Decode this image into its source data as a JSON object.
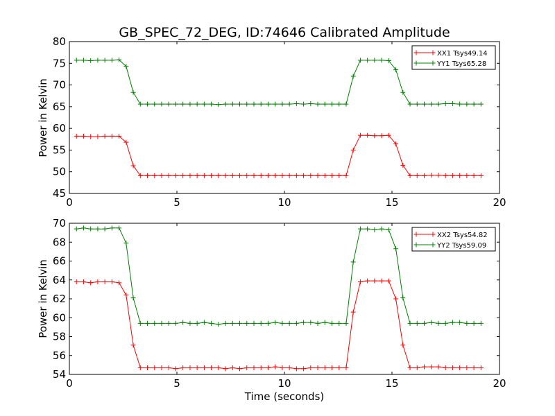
{
  "chart_data": [
    {
      "type": "line",
      "title": "GB_SPEC_72_DEG, ID:74646 Calibrated Amplitude",
      "xlabel": "",
      "ylabel": "Power in Kelvin",
      "xlim": [
        0,
        20
      ],
      "ylim": [
        45,
        80
      ],
      "xticks": [
        0,
        5,
        10,
        15,
        20
      ],
      "yticks": [
        45,
        50,
        55,
        60,
        65,
        70,
        75,
        80
      ],
      "legend_position": "top-right",
      "x": [
        0.33,
        0.66,
        0.99,
        1.32,
        1.65,
        1.98,
        2.31,
        2.64,
        2.97,
        3.3,
        3.63,
        3.96,
        4.29,
        4.62,
        4.95,
        5.28,
        5.61,
        5.94,
        6.27,
        6.6,
        6.93,
        7.26,
        7.59,
        7.92,
        8.25,
        8.58,
        8.91,
        9.24,
        9.57,
        9.9,
        10.23,
        10.56,
        10.89,
        11.22,
        11.55,
        11.88,
        12.21,
        12.54,
        12.87,
        13.2,
        13.53,
        13.86,
        14.19,
        14.52,
        14.85,
        15.18,
        15.51,
        15.84,
        16.17,
        16.5,
        16.83,
        17.16,
        17.49,
        17.82,
        18.15,
        18.48,
        18.81,
        19.14
      ],
      "series": [
        {
          "name": "XX1 Tsys49.14",
          "color": "#ff0000",
          "values": [
            58.2,
            58.2,
            58.1,
            58.1,
            58.2,
            58.2,
            58.2,
            56.8,
            51.4,
            49.1,
            49.1,
            49.1,
            49.1,
            49.1,
            49.1,
            49.1,
            49.1,
            49.1,
            49.1,
            49.1,
            49.1,
            49.1,
            49.1,
            49.1,
            49.1,
            49.1,
            49.1,
            49.1,
            49.1,
            49.1,
            49.1,
            49.1,
            49.1,
            49.1,
            49.1,
            49.1,
            49.1,
            49.1,
            49.1,
            55.0,
            58.4,
            58.4,
            58.3,
            58.3,
            58.4,
            56.4,
            51.5,
            49.1,
            49.1,
            49.1,
            49.2,
            49.2,
            49.1,
            49.1,
            49.1,
            49.1,
            49.1,
            49.1
          ]
        },
        {
          "name": "YY1 Tsys65.28",
          "color": "#008000",
          "values": [
            75.7,
            75.7,
            75.6,
            75.7,
            75.7,
            75.7,
            75.8,
            74.3,
            68.3,
            65.6,
            65.6,
            65.6,
            65.6,
            65.6,
            65.6,
            65.6,
            65.6,
            65.6,
            65.6,
            65.6,
            65.5,
            65.6,
            65.6,
            65.6,
            65.6,
            65.6,
            65.6,
            65.6,
            65.6,
            65.6,
            65.6,
            65.7,
            65.6,
            65.7,
            65.6,
            65.6,
            65.6,
            65.6,
            65.6,
            72.0,
            75.7,
            75.7,
            75.7,
            75.7,
            75.6,
            73.5,
            68.3,
            65.6,
            65.6,
            65.6,
            65.6,
            65.6,
            65.7,
            65.7,
            65.6,
            65.6,
            65.6,
            65.6
          ]
        }
      ]
    },
    {
      "type": "line",
      "title": "",
      "xlabel": "Time (seconds)",
      "ylabel": "Power in Kelvin",
      "xlim": [
        0,
        20
      ],
      "ylim": [
        54,
        70
      ],
      "xticks": [
        0,
        5,
        10,
        15,
        20
      ],
      "yticks": [
        54,
        56,
        58,
        60,
        62,
        64,
        66,
        68,
        70
      ],
      "legend_position": "top-right",
      "x": [
        0.33,
        0.66,
        0.99,
        1.32,
        1.65,
        1.98,
        2.31,
        2.64,
        2.97,
        3.3,
        3.63,
        3.96,
        4.29,
        4.62,
        4.95,
        5.28,
        5.61,
        5.94,
        6.27,
        6.6,
        6.93,
        7.26,
        7.59,
        7.92,
        8.25,
        8.58,
        8.91,
        9.24,
        9.57,
        9.9,
        10.23,
        10.56,
        10.89,
        11.22,
        11.55,
        11.88,
        12.21,
        12.54,
        12.87,
        13.2,
        13.53,
        13.86,
        14.19,
        14.52,
        14.85,
        15.18,
        15.51,
        15.84,
        16.17,
        16.5,
        16.83,
        17.16,
        17.49,
        17.82,
        18.15,
        18.48,
        18.81,
        19.14
      ],
      "series": [
        {
          "name": "XX2 Tsys54.82",
          "color": "#ff0000",
          "values": [
            63.8,
            63.8,
            63.7,
            63.8,
            63.8,
            63.8,
            63.7,
            62.4,
            57.1,
            54.7,
            54.7,
            54.7,
            54.7,
            54.7,
            54.6,
            54.7,
            54.7,
            54.7,
            54.7,
            54.7,
            54.7,
            54.6,
            54.7,
            54.6,
            54.7,
            54.7,
            54.7,
            54.7,
            54.8,
            54.7,
            54.7,
            54.6,
            54.6,
            54.7,
            54.7,
            54.7,
            54.7,
            54.7,
            54.7,
            60.6,
            63.8,
            63.9,
            63.9,
            63.9,
            63.9,
            62.0,
            57.1,
            54.7,
            54.7,
            54.8,
            54.8,
            54.8,
            54.7,
            54.7,
            54.7,
            54.7,
            54.7,
            54.7
          ]
        },
        {
          "name": "YY2 Tsys59.09",
          "color": "#008000",
          "values": [
            69.4,
            69.5,
            69.4,
            69.4,
            69.4,
            69.5,
            69.5,
            67.9,
            62.1,
            59.4,
            59.4,
            59.4,
            59.4,
            59.4,
            59.4,
            59.5,
            59.4,
            59.4,
            59.5,
            59.4,
            59.3,
            59.4,
            59.4,
            59.4,
            59.4,
            59.4,
            59.4,
            59.4,
            59.5,
            59.4,
            59.4,
            59.4,
            59.5,
            59.5,
            59.4,
            59.5,
            59.4,
            59.4,
            59.4,
            65.9,
            69.4,
            69.4,
            69.3,
            69.4,
            69.3,
            67.3,
            62.1,
            59.4,
            59.4,
            59.4,
            59.5,
            59.4,
            59.4,
            59.5,
            59.5,
            59.4,
            59.4,
            59.4
          ]
        }
      ]
    }
  ]
}
